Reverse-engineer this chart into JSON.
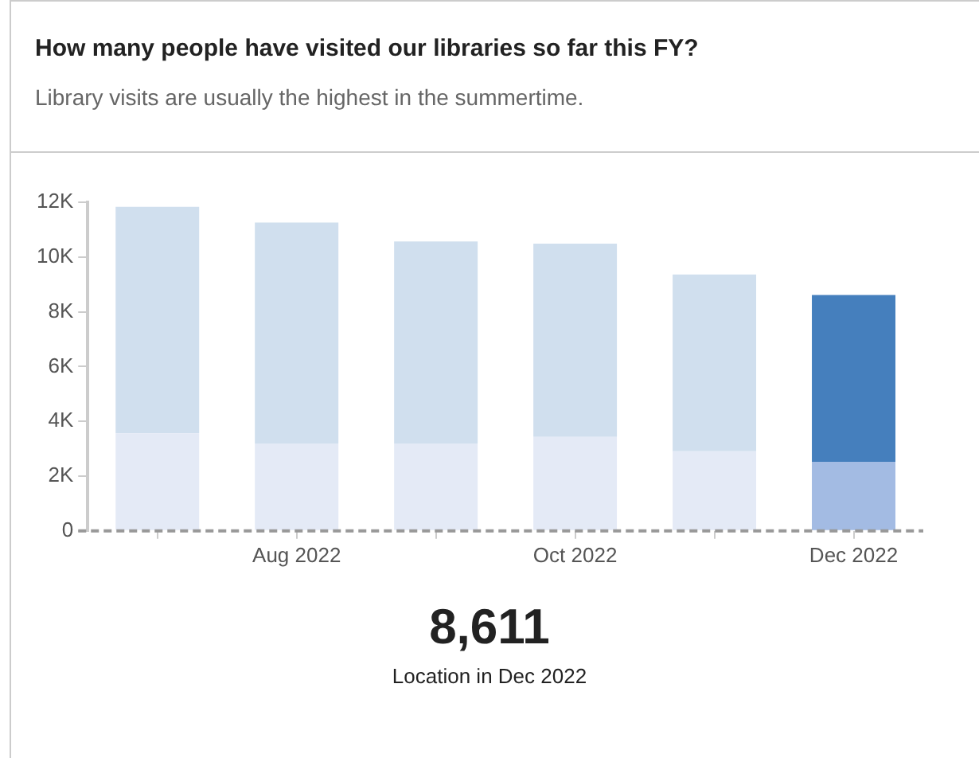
{
  "chart_data": {
    "type": "bar",
    "title": "How many people have visited our libraries so far this FY?",
    "subtitle": "Library visits are usually the highest in the summertime.",
    "categories": [
      null,
      "Aug 2022",
      null,
      "Oct 2022",
      null,
      "Dec 2022"
    ],
    "stacked": true,
    "series": [
      {
        "colors": [
          "#e4eaf6",
          "#e4eaf6",
          "#e4eaf6",
          "#e4eaf6",
          "#e4eaf6",
          "#a3bbe3"
        ],
        "values": [
          3560,
          3190,
          3190,
          3430,
          2910,
          2520
        ]
      },
      {
        "colors": [
          "#d0dfee",
          "#d0dfee",
          "#d0dfee",
          "#d0dfee",
          "#d0dfee",
          "#457fbd"
        ],
        "values": [
          8270,
          8070,
          7380,
          7060,
          6450,
          6090
        ]
      }
    ],
    "ylim": [
      0,
      12000
    ],
    "yticks": [
      0,
      {
        "value": 2000,
        "label": "2K"
      },
      {
        "value": 4000,
        "label": "4K"
      },
      {
        "value": 6000,
        "label": "6K"
      },
      {
        "value": 8000,
        "label": "8K"
      },
      {
        "value": 10000,
        "label": "10K"
      },
      {
        "value": 12000,
        "label": "12K"
      }
    ],
    "ref_lines": [
      {
        "axis": "y",
        "value": 0,
        "color": "#999999",
        "line_style": "dashed"
      }
    ],
    "grid": false,
    "legend": false,
    "annotations": [
      "8,611",
      "Location in Dec 2022"
    ]
  }
}
